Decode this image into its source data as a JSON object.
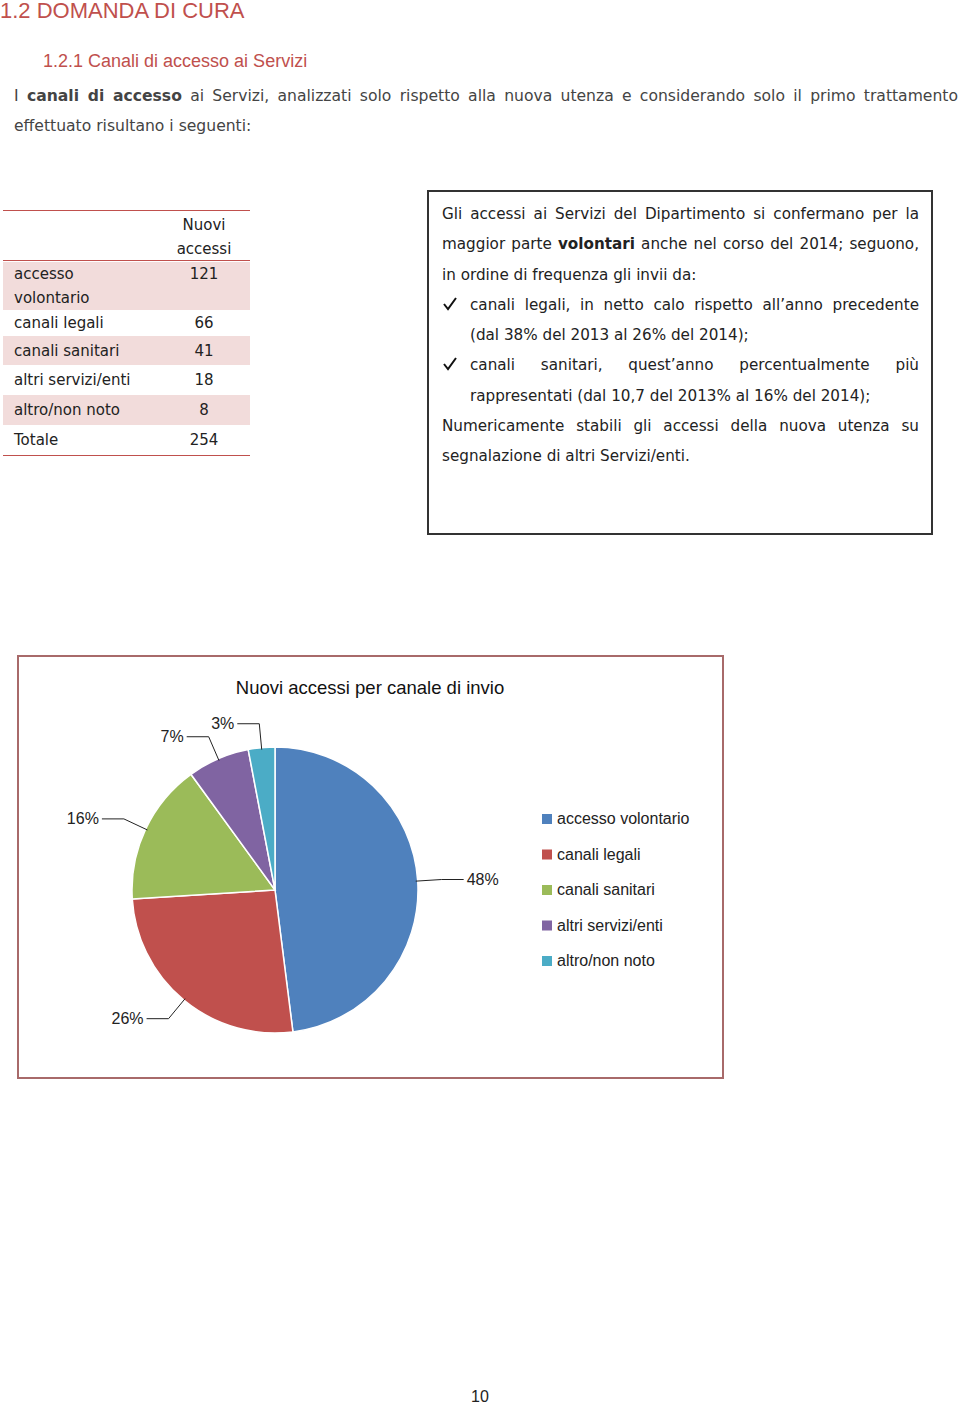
{
  "header": {
    "section": "1.2 DOMANDA DI CURA",
    "subsection": "1.2.1 Canali di accesso ai Servizi"
  },
  "intro": [
    {
      "text": "I "
    },
    {
      "text": "canali di accesso",
      "bold": true
    },
    {
      "text": " ai Servizi, analizzati solo rispetto alla nuova utenza e considerando solo il primo trattamento effettuato risultano i seguenti:"
    }
  ],
  "table": {
    "column_header": "Nuovi accessi",
    "rows": [
      [
        "accesso volontario",
        121
      ],
      [
        "canali legali",
        66
      ],
      [
        "canali sanitari",
        41
      ],
      [
        "altri servizi/enti",
        18
      ],
      [
        "altro/non noto",
        8
      ],
      [
        "Totale",
        254
      ]
    ]
  },
  "textbox": {
    "intro": [
      {
        "text": "Gli accessi ai Servizi del Dipartimento si confermano per la maggior parte "
      },
      {
        "text": "volontari",
        "bold": true
      },
      {
        "text": " anche nel corso del 2014; seguono, in ordine di frequenza gli invii da:"
      }
    ],
    "bullets": [
      "canali legali, in netto calo rispetto all’anno precedente (dal 38% del 2013 al 26% del 2014);",
      "canali sanitari, quest’anno percentualmente più rappresentati (dal 10,7 del 2013% al 16% del 2014);"
    ],
    "closing": "Numericamente stabili gli accessi  della nuova utenza su segnalazione di altri Servizi/enti."
  },
  "chart_data": {
    "type": "pie",
    "title": "Nuovi accessi per canale di invio",
    "categories": [
      "accesso volontario",
      "canali legali",
      "canali sanitari",
      "altri servizi/enti",
      "altro/non noto"
    ],
    "values": [
      48,
      26,
      16,
      7,
      3
    ],
    "value_labels": [
      "48%",
      "26%",
      "16%",
      "7%",
      "3%"
    ],
    "colors": [
      "#4f81bd",
      "#c0504d",
      "#9bbb59",
      "#8064a2",
      "#4bacc6"
    ],
    "data_labels": true,
    "legend": "right"
  },
  "page_number": "10"
}
